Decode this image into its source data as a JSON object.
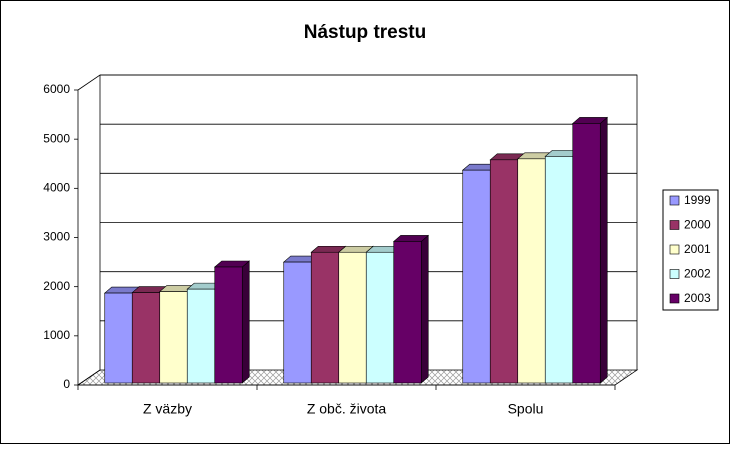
{
  "chart_data": {
    "type": "bar3d",
    "title": "Nástup trestu",
    "categories": [
      "Z väzby",
      "Z obč. života",
      "Spolu"
    ],
    "series": [
      {
        "name": "1999",
        "color": "#9999ff",
        "values": [
          1870,
          2500,
          4370
        ]
      },
      {
        "name": "2000",
        "color": "#993366",
        "values": [
          1880,
          2700,
          4580
        ]
      },
      {
        "name": "2001",
        "color": "#ffffcc",
        "values": [
          1900,
          2700,
          4600
        ]
      },
      {
        "name": "2002",
        "color": "#ccffff",
        "values": [
          1950,
          2700,
          4650
        ]
      },
      {
        "name": "2003",
        "color": "#660066",
        "values": [
          2400,
          2920,
          5320
        ]
      }
    ],
    "ylim": [
      0,
      6000
    ],
    "yticks": [
      0,
      1000,
      2000,
      3000,
      4000,
      5000,
      6000
    ],
    "grid": true,
    "legend": "right"
  }
}
